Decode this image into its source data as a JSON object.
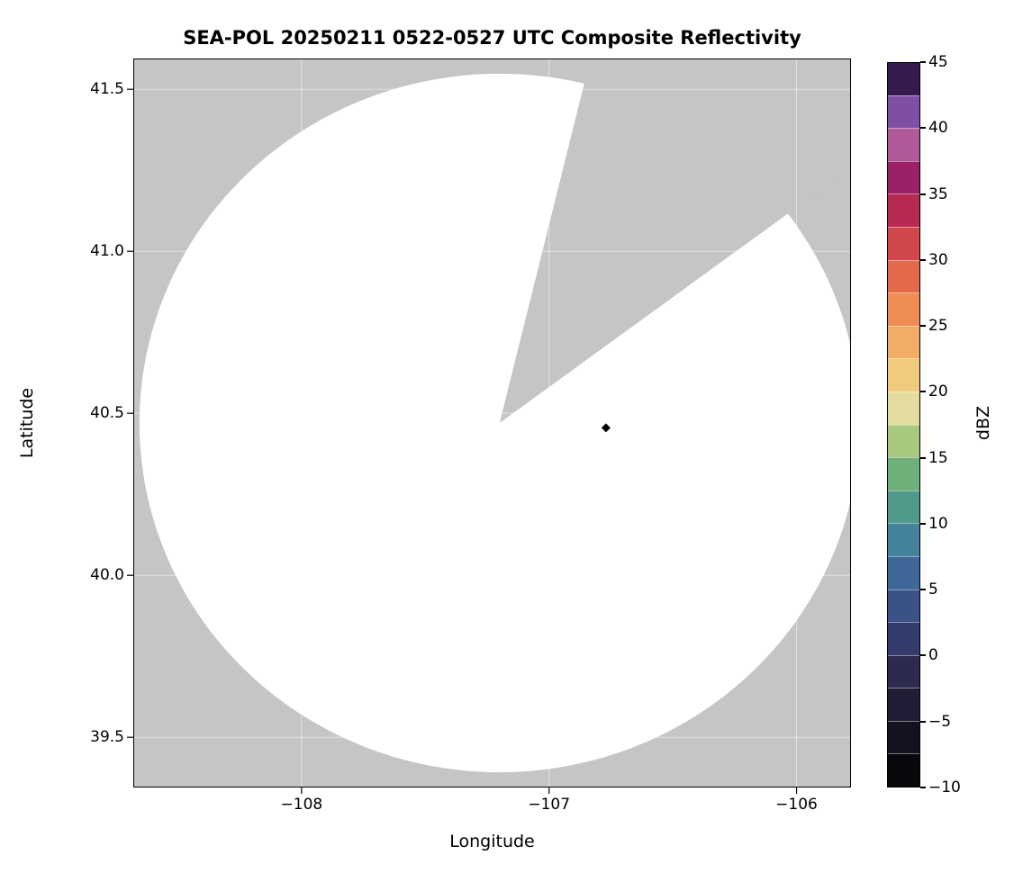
{
  "chart_data": {
    "type": "heatmap",
    "title": "SEA-POL 20250211 0522-0527 UTC Composite Reflectivity",
    "xlabel": "Longitude",
    "ylabel": "Latitude",
    "xlim": [
      -108.68,
      -105.78
    ],
    "ylim": [
      39.345,
      41.595
    ],
    "x_ticks": [
      -108,
      -107,
      -106
    ],
    "x_tick_labels": [
      "−108",
      "−107",
      "−106"
    ],
    "y_ticks": [
      39.5,
      40.0,
      40.5,
      41.0,
      41.5
    ],
    "y_tick_labels": [
      "39.5",
      "40.0",
      "40.5",
      "41.0",
      "41.5"
    ],
    "grid": true,
    "grid_color": "#ffffff",
    "background_color": "#c5c5c5",
    "coverage": {
      "description": "radar scan coverage disk, no echoes above threshold (all white)",
      "center_lon": -107.2,
      "center_lat": 40.47,
      "radius_lon_deg": 1.455,
      "radius_lat_deg": 1.078,
      "fill": "#ffffff",
      "missing_sector_azimuth_deg": [
        14,
        54
      ]
    },
    "marker": {
      "lon": -106.77,
      "lat": 40.455,
      "shape": "diamond",
      "color": "#000000"
    },
    "colorbar": {
      "label": "dBZ",
      "min": -10,
      "max": 45,
      "ticks": [
        45,
        40,
        35,
        30,
        25,
        20,
        15,
        10,
        5,
        0,
        -5,
        -10
      ],
      "tick_labels": [
        "45",
        "40",
        "35",
        "30",
        "25",
        "20",
        "15",
        "10",
        "5",
        "0",
        "−5",
        "−10"
      ],
      "segment_step_dbz": 2.5,
      "segment_colors_top_to_bottom": [
        "#351a4e",
        "#7e4fa5",
        "#b05a9b",
        "#9c2066",
        "#b72b52",
        "#d1464b",
        "#e4694b",
        "#ee8c53",
        "#f1ac66",
        "#f0cb7e",
        "#e3dda0",
        "#a8c87e",
        "#6fb07a",
        "#4f9a8a",
        "#45829b",
        "#3f6899",
        "#3a5286",
        "#343c6d",
        "#2c2b4f",
        "#211d36",
        "#141221",
        "#07070c"
      ]
    }
  }
}
